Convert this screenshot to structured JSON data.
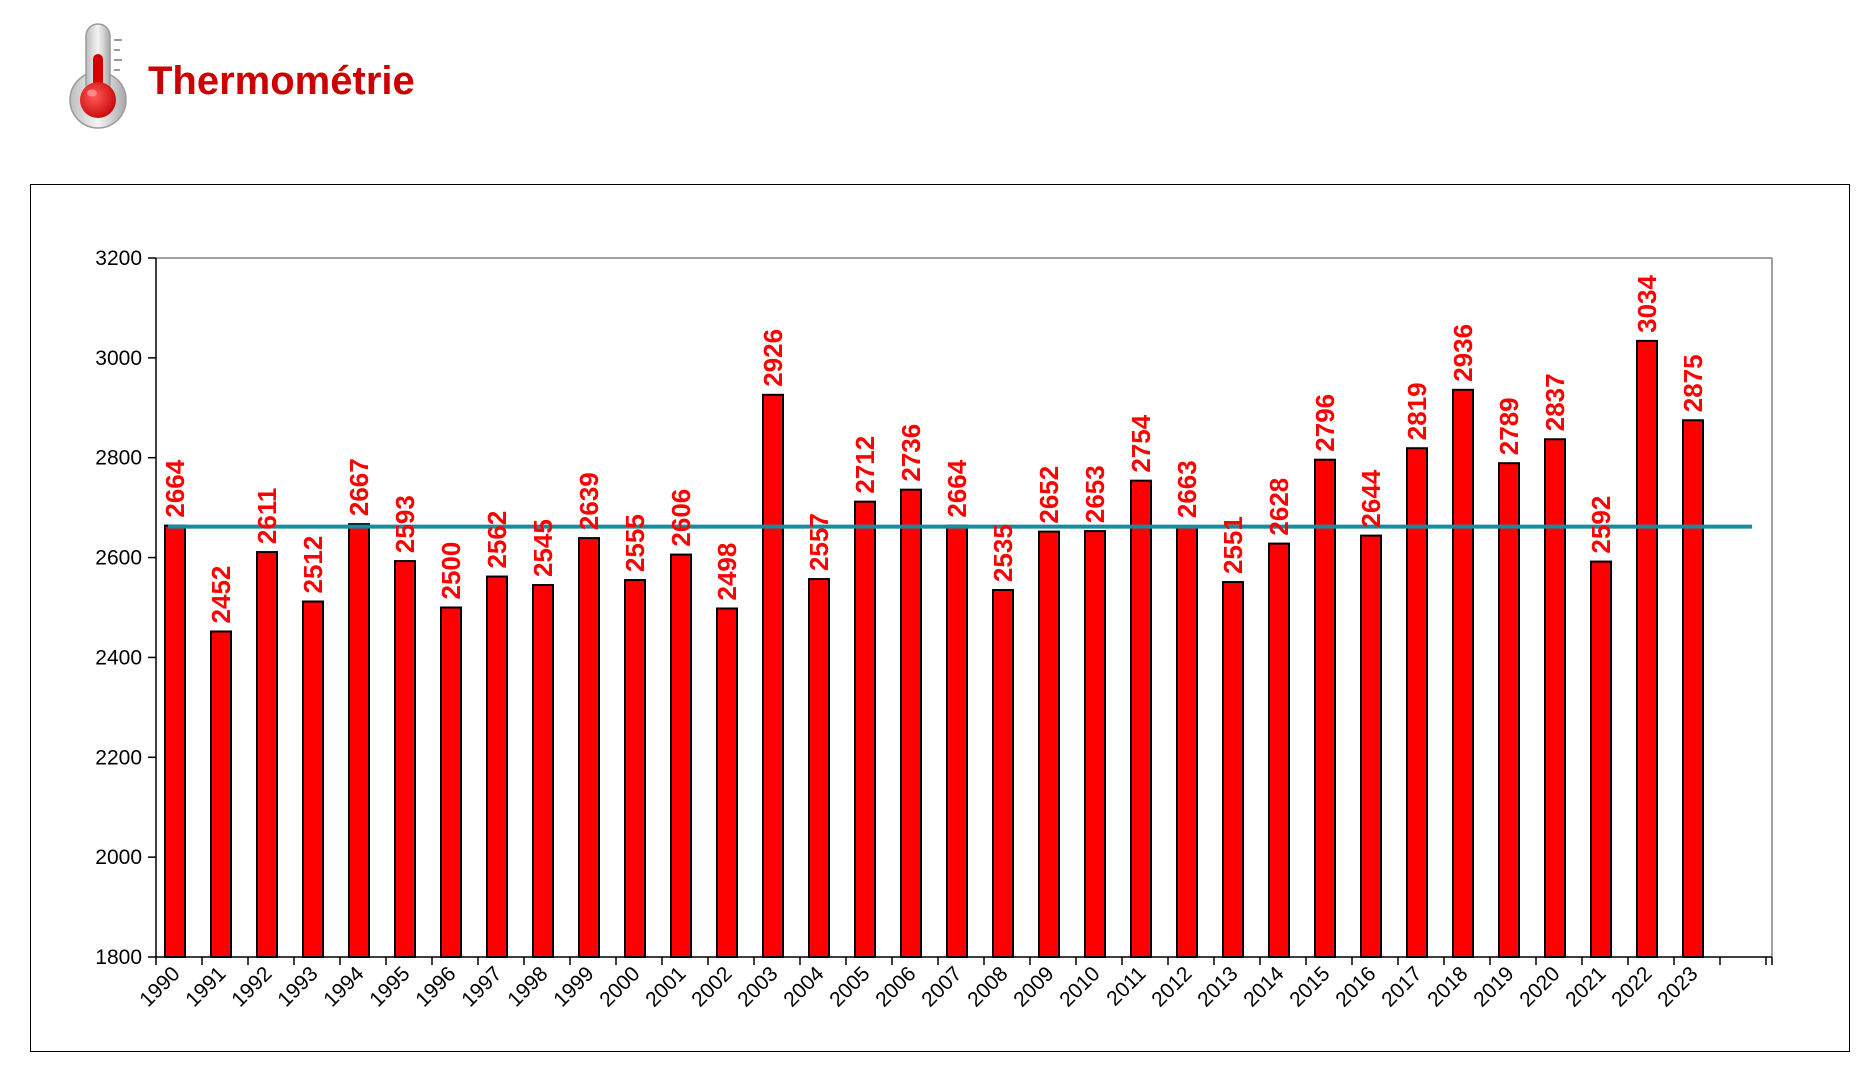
{
  "header": {
    "title": "Thermométrie"
  },
  "chart_data": {
    "type": "bar",
    "title": "",
    "xlabel": "",
    "ylabel": "",
    "ylim": [
      1800,
      3200
    ],
    "yticks": [
      1800,
      2000,
      2200,
      2400,
      2600,
      2800,
      3000,
      3200
    ],
    "categories": [
      "1990",
      "1991",
      "1992",
      "1993",
      "1994",
      "1995",
      "1996",
      "1997",
      "1998",
      "1999",
      "2000",
      "2001",
      "2002",
      "2003",
      "2004",
      "2005",
      "2006",
      "2007",
      "2008",
      "2009",
      "2010",
      "2011",
      "2012",
      "2013",
      "2014",
      "2015",
      "2016",
      "2017",
      "2018",
      "2019",
      "2020",
      "2021",
      "2022",
      "2023"
    ],
    "values": [
      2664,
      2452,
      2611,
      2512,
      2667,
      2593,
      2500,
      2562,
      2545,
      2639,
      2555,
      2606,
      2498,
      2926,
      2557,
      2712,
      2736,
      2664,
      2535,
      2652,
      2653,
      2754,
      2663,
      2551,
      2628,
      2796,
      2644,
      2819,
      2936,
      2789,
      2837,
      2592,
      3034,
      2875
    ],
    "reference_line": 2662,
    "grid": false,
    "colors": {
      "bar": "#ff0000",
      "bar_outline": "#000000",
      "label": "#ff0000",
      "reference_line": "#1a8a9c"
    }
  }
}
